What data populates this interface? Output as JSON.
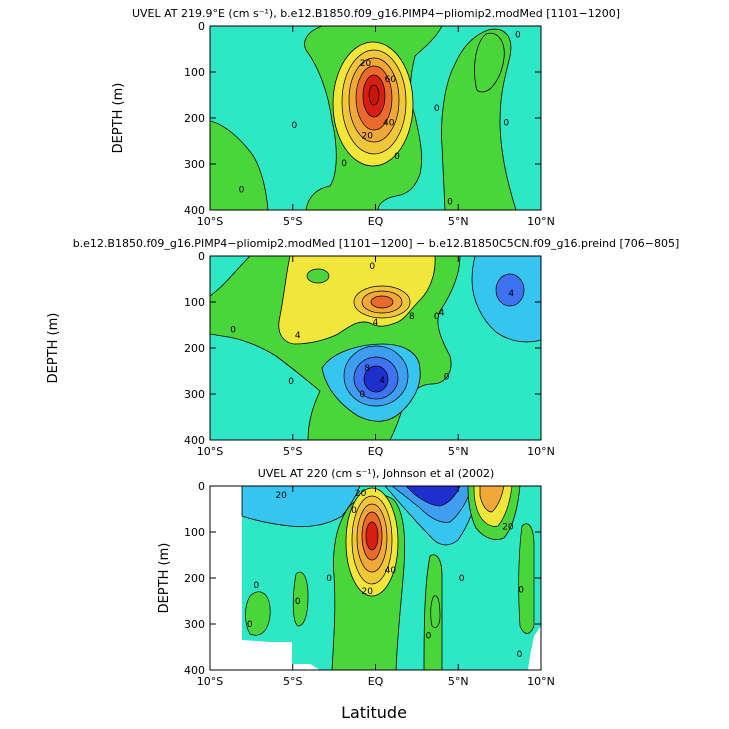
{
  "figure": {
    "xlabel": "Latitude"
  },
  "palette": {
    "neg3": "#1f2fcf",
    "neg2": "#3f72f0",
    "neg1": "#35c5ee",
    "background": "#2ee8c5",
    "pos1": "#4ad63a",
    "pos2": "#f3e63a",
    "pos3": "#f0a838",
    "pos4": "#e96a2a",
    "core": "#d81e12"
  },
  "chart_data": [
    {
      "type": "contour",
      "title": "UVEL AT 219.9°E (cm s⁻¹), b.e12.B1850.f09_g16.PIMP4−pliomip2.modMed [1101−1200]",
      "ylabel": "DEPTH (m)",
      "xlabel": "",
      "xticks": [
        "10°S",
        "5°S",
        "EQ",
        "5°N",
        "10°N"
      ],
      "yticks": [
        "0",
        "100",
        "200",
        "300",
        "400"
      ],
      "xlim": [
        -10,
        10
      ],
      "ylim": [
        400,
        0
      ],
      "contour_labels": [
        {
          "text": "0",
          "lat": -8.1,
          "depth": 355
        },
        {
          "text": "0",
          "lat": -4.9,
          "depth": 215
        },
        {
          "text": "0",
          "lat": -1.9,
          "depth": 298
        },
        {
          "text": "0",
          "lat": 1.3,
          "depth": 283
        },
        {
          "text": "0",
          "lat": 3.7,
          "depth": 178
        },
        {
          "text": "0",
          "lat": 4.5,
          "depth": 382
        },
        {
          "text": "0",
          "lat": 7.9,
          "depth": 210
        },
        {
          "text": "0",
          "lat": 8.6,
          "depth": 18
        },
        {
          "text": "20",
          "lat": -0.5,
          "depth": 238
        },
        {
          "text": "20",
          "lat": -0.6,
          "depth": 80
        },
        {
          "text": "40",
          "lat": 0.8,
          "depth": 210
        },
        {
          "text": "60",
          "lat": 0.9,
          "depth": 115
        }
      ]
    },
    {
      "type": "contour",
      "title": "b.e12.B1850.f09_g16.PIMP4−pliomip2.modMed [1101−1200] − b.e12.B1850C5CN.f09_g16.preind [706−805]",
      "ylabel": "DEPTH (m)",
      "xlabel": "",
      "xticks": [
        "10°S",
        "5°S",
        "EQ",
        "5°N",
        "10°N"
      ],
      "yticks": [
        "0",
        "100",
        "200",
        "300",
        "400"
      ],
      "xlim": [
        -10,
        10
      ],
      "ylim": [
        400,
        0
      ],
      "contour_labels": [
        {
          "text": "0",
          "lat": -8.6,
          "depth": 160
        },
        {
          "text": "0",
          "lat": -5.1,
          "depth": 272
        },
        {
          "text": "0",
          "lat": -0.8,
          "depth": 300
        },
        {
          "text": "0",
          "lat": 4.3,
          "depth": 262
        },
        {
          "text": "0",
          "lat": 3.7,
          "depth": 130
        },
        {
          "text": "0",
          "lat": -0.2,
          "depth": 22
        },
        {
          "text": "4",
          "lat": -4.7,
          "depth": 172
        },
        {
          "text": "4",
          "lat": 0.0,
          "depth": 143
        },
        {
          "text": "4",
          "lat": 4.0,
          "depth": 123
        },
        {
          "text": "4",
          "lat": 8.2,
          "depth": 80
        },
        {
          "text": "4",
          "lat": 0.4,
          "depth": 270
        },
        {
          "text": "8",
          "lat": 2.2,
          "depth": 130
        },
        {
          "text": "8",
          "lat": -0.5,
          "depth": 243
        }
      ]
    },
    {
      "type": "contour",
      "title": "UVEL AT 220 (cm s⁻¹), Johnson et al (2002)",
      "ylabel": "DEPTH (m)",
      "xlabel": "Latitude",
      "xticks": [
        "10°S",
        "5°S",
        "EQ",
        "5°N",
        "10°N"
      ],
      "yticks": [
        "0",
        "100",
        "200",
        "300",
        "400"
      ],
      "xlim": [
        -10,
        10
      ],
      "ylim": [
        400,
        0
      ],
      "contour_labels": [
        {
          "text": "20",
          "lat": -5.7,
          "depth": 20
        },
        {
          "text": "20",
          "lat": -0.9,
          "depth": 15
        },
        {
          "text": "0",
          "lat": -1.3,
          "depth": 52
        },
        {
          "text": "0",
          "lat": -2.8,
          "depth": 200
        },
        {
          "text": "0",
          "lat": -4.7,
          "depth": 250
        },
        {
          "text": "0",
          "lat": -7.2,
          "depth": 215
        },
        {
          "text": "0",
          "lat": -7.6,
          "depth": 300
        },
        {
          "text": "20",
          "lat": -0.5,
          "depth": 228
        },
        {
          "text": "40",
          "lat": 0.9,
          "depth": 183
        },
        {
          "text": "0",
          "lat": 5.2,
          "depth": 200
        },
        {
          "text": "0",
          "lat": 3.2,
          "depth": 325
        },
        {
          "text": "0",
          "lat": 8.8,
          "depth": 225
        },
        {
          "text": "0",
          "lat": 8.7,
          "depth": 365
        },
        {
          "text": "20",
          "lat": 8.0,
          "depth": 88
        }
      ]
    }
  ]
}
